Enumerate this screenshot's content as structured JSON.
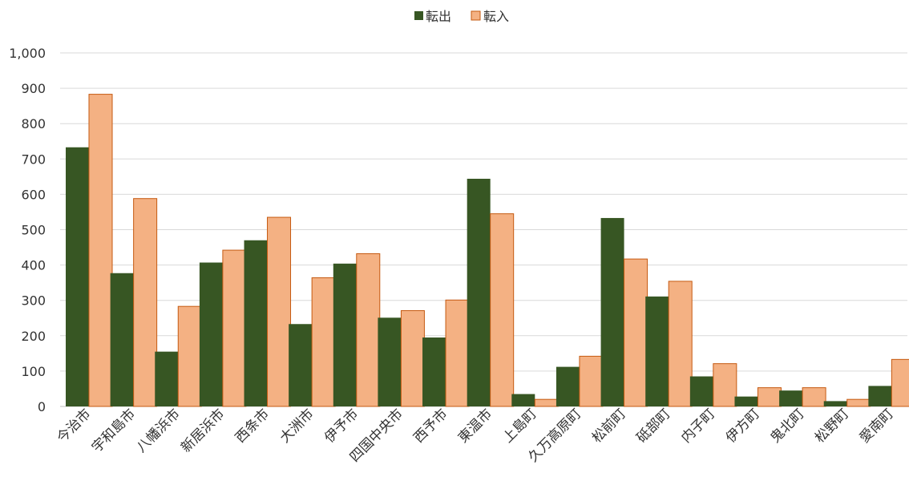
{
  "chart_data": {
    "type": "bar",
    "categories": [
      "今治市",
      "宇和島市",
      "八幡浜市",
      "新居浜市",
      "西条市",
      "大洲市",
      "伊予市",
      "四国中央市",
      "西予市",
      "東温市",
      "上島町",
      "久万高原町",
      "松前町",
      "砥部町",
      "内子町",
      "伊方町",
      "鬼北町",
      "松野町",
      "愛南町"
    ],
    "series": [
      {
        "name": "転出",
        "color": "#375623",
        "values": [
          733,
          377,
          155,
          407,
          470,
          233,
          404,
          251,
          195,
          644,
          35,
          112,
          533,
          311,
          85,
          28,
          45,
          15,
          58
        ]
      },
      {
        "name": "転入",
        "color": "#f4b183",
        "values": [
          883,
          588,
          283,
          442,
          535,
          364,
          432,
          271,
          301,
          545,
          20,
          142,
          417,
          354,
          121,
          53,
          53,
          20,
          133
        ]
      }
    ],
    "ylim": [
      0,
      1000
    ],
    "yticks": [
      0,
      100,
      200,
      300,
      400,
      500,
      600,
      700,
      800,
      900,
      1000
    ],
    "ytick_labels": [
      "0",
      "100",
      "200",
      "300",
      "400",
      "500",
      "600",
      "700",
      "800",
      "900",
      "1,000"
    ],
    "grid": true,
    "legend_position": "top-center",
    "title": "",
    "xlabel": "",
    "ylabel": ""
  }
}
